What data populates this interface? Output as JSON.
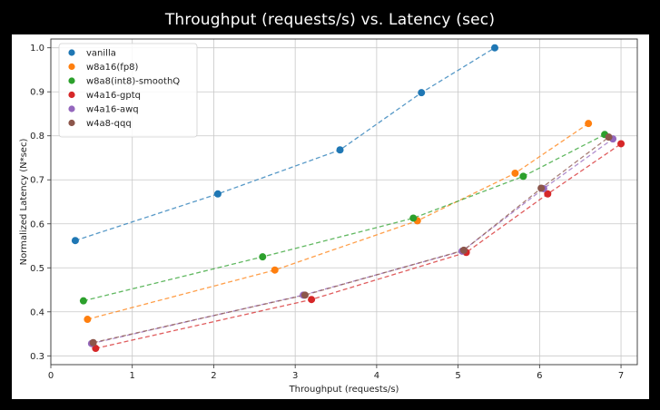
{
  "slide_title": "Throughput (requests/s) vs. Latency (sec)",
  "chart_data": {
    "type": "scatter",
    "title": "",
    "xlabel": "Throughput (requests/s)",
    "ylabel": "Normalized Latency (N*sec)",
    "xlim": [
      0,
      7.2
    ],
    "ylim": [
      0.28,
      1.02
    ],
    "xticks": [
      0,
      1,
      2,
      3,
      4,
      5,
      6,
      7
    ],
    "yticks": [
      0.3,
      0.4,
      0.5,
      0.6,
      0.7,
      0.8,
      0.9,
      1.0
    ],
    "xtick_labels": [
      "0",
      "1",
      "2",
      "3",
      "4",
      "5",
      "6",
      "7"
    ],
    "ytick_labels": [
      "0.3",
      "0.4",
      "0.5",
      "0.6",
      "0.7",
      "0.8",
      "0.9",
      "1.0"
    ],
    "grid": true,
    "legend_position": "top-left",
    "line_style": "dashed",
    "series": [
      {
        "name": "vanilla",
        "color": "#1f77b4",
        "x": [
          0.3,
          2.05,
          3.55,
          4.55,
          5.45
        ],
        "y": [
          0.562,
          0.668,
          0.768,
          0.898,
          1.0
        ]
      },
      {
        "name": "w8a16(fp8)",
        "color": "#ff7f0e",
        "x": [
          0.45,
          2.75,
          4.5,
          5.7,
          6.6
        ],
        "y": [
          0.383,
          0.495,
          0.607,
          0.715,
          0.828
        ]
      },
      {
        "name": "w8a8(int8)-smoothQ",
        "color": "#2ca02c",
        "x": [
          0.4,
          2.6,
          4.45,
          5.8,
          6.8
        ],
        "y": [
          0.425,
          0.525,
          0.613,
          0.708,
          0.803
        ]
      },
      {
        "name": "w4a16-gptq",
        "color": "#d62728",
        "x": [
          0.55,
          3.2,
          5.1,
          6.1,
          7.0
        ],
        "y": [
          0.317,
          0.428,
          0.535,
          0.668,
          0.782
        ]
      },
      {
        "name": "w4a16-awq",
        "color": "#9467bd",
        "x": [
          0.5,
          3.1,
          5.05,
          6.05,
          6.9
        ],
        "y": [
          0.328,
          0.438,
          0.538,
          0.68,
          0.793
        ]
      },
      {
        "name": "w4a8-qqq",
        "color": "#8c564b",
        "x": [
          0.52,
          3.12,
          5.07,
          6.02,
          6.85
        ],
        "y": [
          0.33,
          0.438,
          0.54,
          0.681,
          0.797
        ]
      }
    ]
  }
}
